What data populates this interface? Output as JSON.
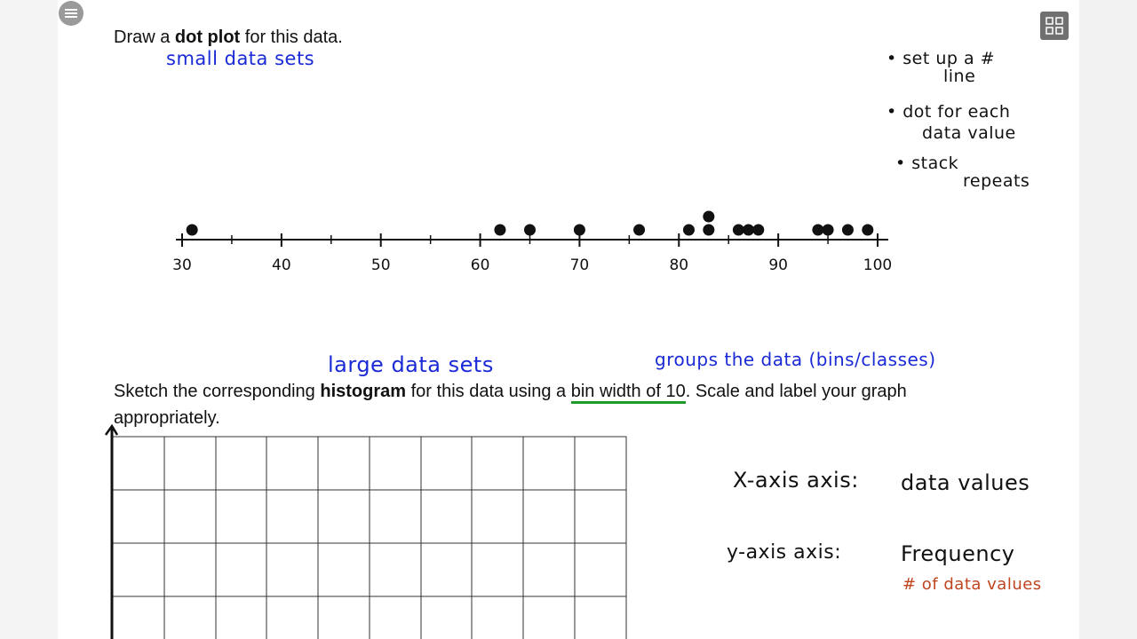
{
  "instruction_1": {
    "before": "Draw a ",
    "bold": "dot plot",
    "after": " for this data."
  },
  "notes_1": {
    "small": "small data sets",
    "bullet_1": [
      "• set up a #",
      "line"
    ],
    "bullet_2": [
      "• dot for each",
      "data value"
    ],
    "bullet_3": [
      "• stack",
      "repeats"
    ]
  },
  "dot_plot": {
    "axis_labels": [
      30,
      40,
      50,
      60,
      70,
      80,
      90,
      100
    ],
    "dots": [
      31,
      62,
      65,
      70,
      76,
      81,
      83,
      83,
      86,
      87,
      88,
      94,
      95,
      97,
      99
    ]
  },
  "notes_2": {
    "large": "large data sets",
    "groups": "groups the data (bins/classes)"
  },
  "instruction_2": {
    "before": "Sketch the corresponding ",
    "bold": "histogram",
    "middle": " for this data using a ",
    "underlined": "bin width of 10",
    "after": ". Scale and label your graph appropriately."
  },
  "axes_notes": {
    "x_label": "X-axis axis:",
    "x_value": "data values",
    "y_label": "y-axis axis:",
    "y_value": "Frequency",
    "y_sub": "# of data values"
  }
}
